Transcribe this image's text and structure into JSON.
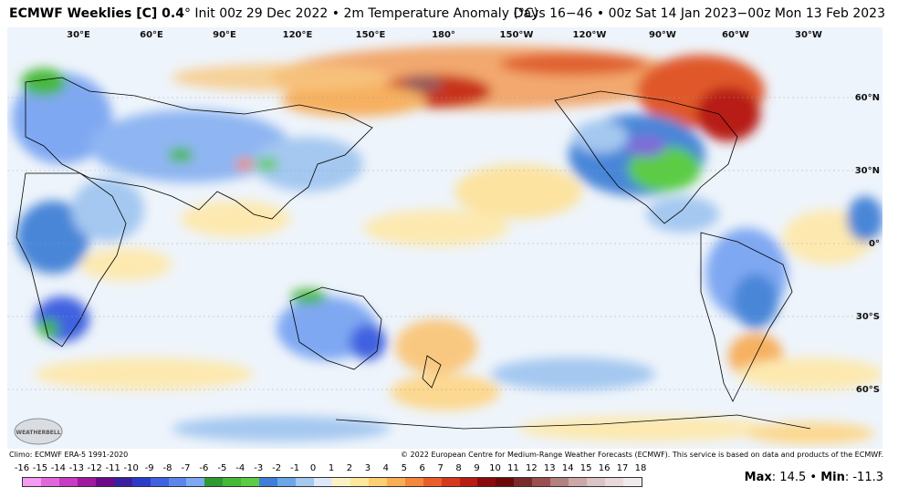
{
  "header": {
    "title_bold": "ECMWF Weeklies [C] 0.4",
    "title_rest": "° Init 00z 29 Dec 2022 • 2m Temperature Anomaly (°C)",
    "title_right": "Days 16−46 • 00z Sat 14 Jan 2023−00z Mon 13 Feb 2023"
  },
  "map": {
    "longitude_labels": [
      "30°E",
      "60°E",
      "90°E",
      "120°E",
      "150°E",
      "180°",
      "150°W",
      "120°W",
      "90°W",
      "60°W",
      "30°W"
    ],
    "latitude_labels": [
      "60°N",
      "30°N",
      "0°",
      "30°S",
      "60°S"
    ],
    "warm_color": "#e8421e",
    "cold_color": "#4a86d8",
    "ocean_neutral": "#eef4fb"
  },
  "logo": {
    "text": "WEATHERBELL"
  },
  "footer": {
    "climo": "Climo: ECMWF ERA-5 1991-2020",
    "copyright": "© 2022 European Centre for Medium-Range Weather Forecasts (ECMWF). This service is based on data and products of the ECMWF."
  },
  "legend": {
    "labels": [
      "-16",
      "-15",
      "-14",
      "-13",
      "-12",
      "-11",
      "-10",
      "-9",
      "-8",
      "-7",
      "-6",
      "-5",
      "-4",
      "-3",
      "-2",
      "-1",
      "0",
      "1",
      "2",
      "3",
      "4",
      "5",
      "6",
      "7",
      "8",
      "9",
      "10",
      "11",
      "12",
      "13",
      "14",
      "15",
      "16",
      "17",
      "18"
    ],
    "colors": [
      "#f49af0",
      "#e068dc",
      "#c83bc4",
      "#a0199f",
      "#6e0a8a",
      "#3a1fa0",
      "#2a3cc8",
      "#3f62e0",
      "#5b86ec",
      "#7fa8f2",
      "#2f9a32",
      "#46b83a",
      "#5ccc44",
      "#3f7fd8",
      "#6aa6e8",
      "#a4c8f0",
      "#dde9f8",
      "#fbf2c4",
      "#fde79a",
      "#fccf73",
      "#f9ad54",
      "#f4873c",
      "#ea5e2a",
      "#d63a1c",
      "#b81c12",
      "#8c0a0a",
      "#6e0808",
      "#7a2a2a",
      "#9a5050",
      "#b48080",
      "#cca8a8",
      "#dcc4c4",
      "#e8dada",
      "#f2eaea"
    ]
  },
  "stats": {
    "max_label": "Max",
    "max_value": "14.5",
    "min_label": "Min",
    "min_value": "-11.3"
  }
}
